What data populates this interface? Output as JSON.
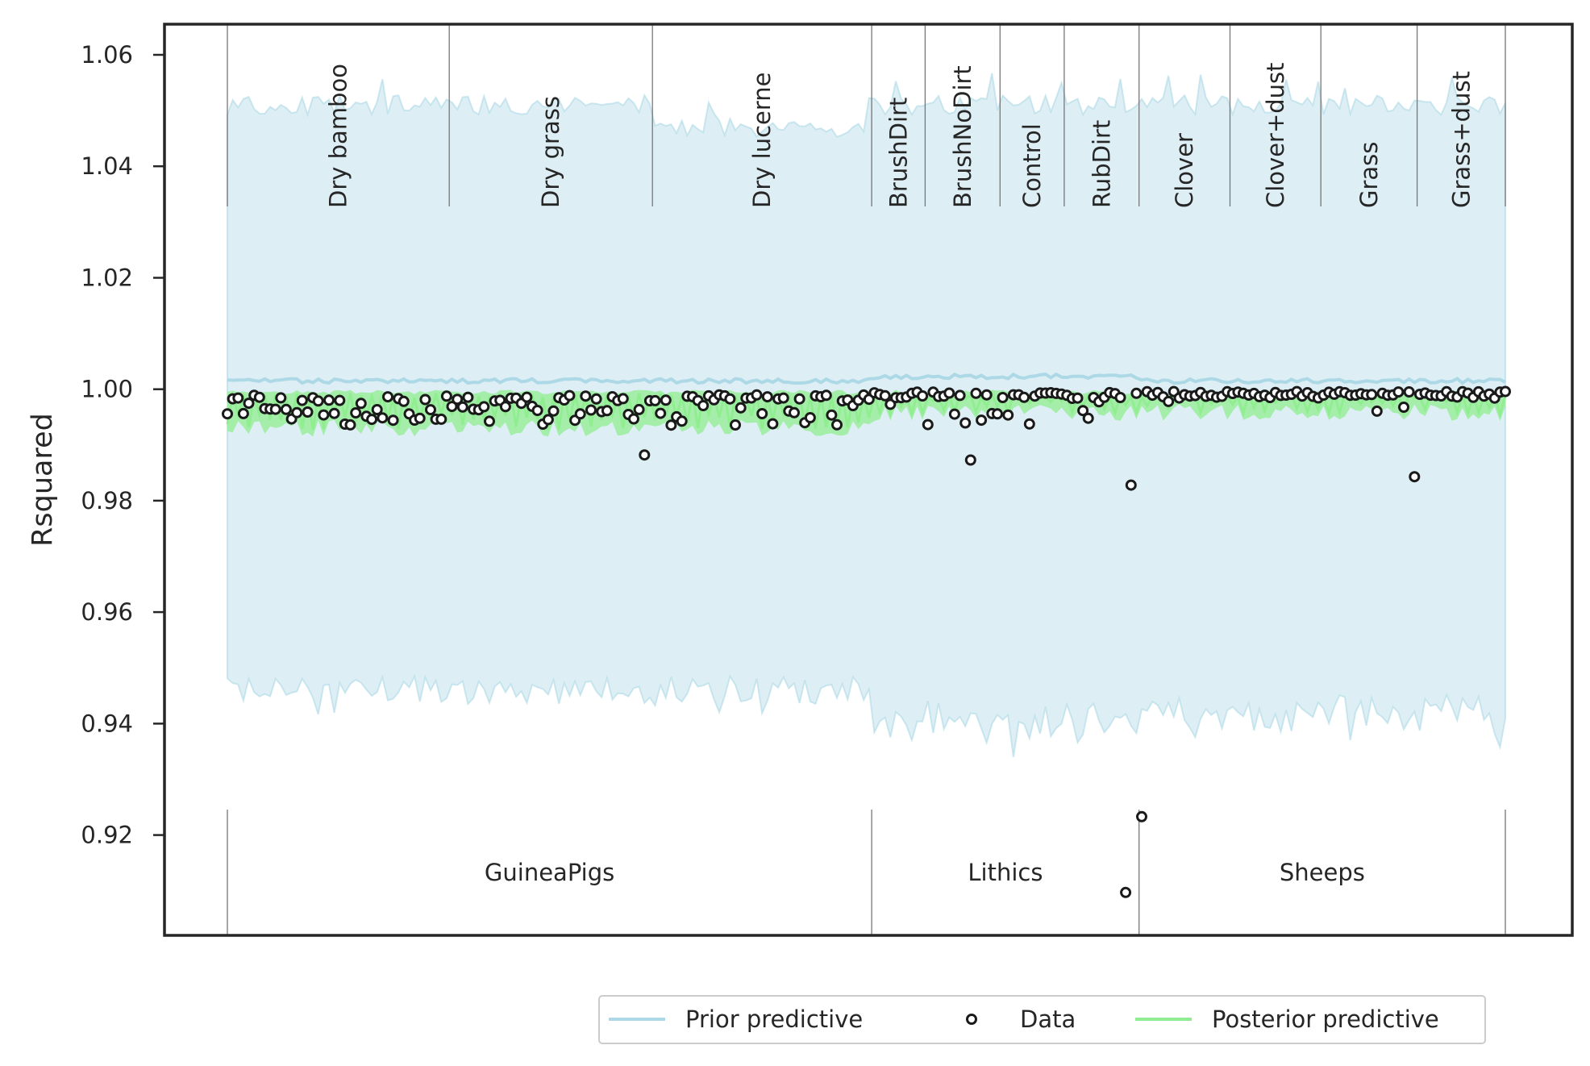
{
  "chart_data": {
    "type": "scatter",
    "ylabel": "Rsquared",
    "xlabel": "",
    "ylim": [
      0.902,
      1.0655
    ],
    "yticks": [
      "0.92",
      "0.94",
      "0.96",
      "0.98",
      "1.00",
      "1.02",
      "1.04",
      "1.06"
    ],
    "grid": false,
    "legend": {
      "placement": "bottom-center",
      "entries": [
        "Prior predictive",
        "Data",
        "Posterior predictive"
      ]
    },
    "colors": {
      "prior": "#add8e6",
      "posterior": "#90ee90",
      "data_edge": "#1a1a1a",
      "separator": "#777777"
    },
    "n_points": 240,
    "prior_band": {
      "lower_typical": 0.946,
      "upper_typical": 1.051,
      "lower_min": 0.934,
      "upper_max": 1.058
    },
    "prior_mean_line": 1.0015,
    "posterior_band": {
      "lower_typical": 0.993,
      "upper_typical": 0.9995
    },
    "subgroups": [
      {
        "name": "Dry bamboo",
        "count": 42
      },
      {
        "name": "Dry grass",
        "count": 38
      },
      {
        "name": "Dry lucerne",
        "count": 41
      },
      {
        "name": "BrushDirt",
        "count": 10
      },
      {
        "name": "BrushNoDirt",
        "count": 14
      },
      {
        "name": "Control",
        "count": 12
      },
      {
        "name": "RubDirt",
        "count": 14
      },
      {
        "name": "Clover",
        "count": 17
      },
      {
        "name": "Clover+dust",
        "count": 17
      },
      {
        "name": "Grass",
        "count": 18
      },
      {
        "name": "Grass+dust",
        "count": 17
      }
    ],
    "groups": [
      {
        "name": "GuineaPigs",
        "subgroup_span": [
          0,
          3
        ]
      },
      {
        "name": "Lithics",
        "subgroup_span": [
          3,
          7
        ]
      },
      {
        "name": "Sheeps",
        "subgroup_span": [
          7,
          11
        ]
      }
    ],
    "notable_data_points": [
      {
        "index": 78,
        "y": 0.9882
      },
      {
        "index": 139,
        "y": 0.9873
      },
      {
        "index": 168,
        "y": 0.9097
      },
      {
        "index": 169,
        "y": 0.9828
      },
      {
        "index": 171,
        "y": 0.9233
      },
      {
        "index": 222,
        "y": 0.9843
      }
    ]
  }
}
